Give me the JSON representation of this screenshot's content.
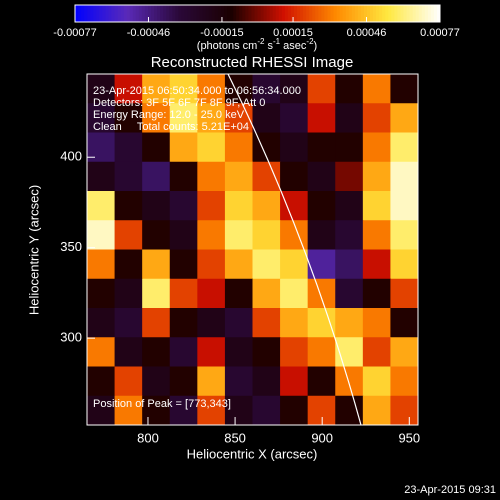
{
  "chart_data": {
    "type": "heatmap",
    "title": "Reconstructed RHESSI Image",
    "x_label": "Heliocentric X (arcsec)",
    "y_label": "Heliocentric Y (arcsec)",
    "colorbar_label": [
      "(photons cm",
      "-2",
      " s",
      "-1",
      " asec",
      "-2",
      ")"
    ],
    "annotations": [
      "23-Apr-2015 06:50:34.000 to 06:56:34.000",
      "Detectors: 3F 5F 6F 7F 8F 9F, Att 0",
      "Energy Range: 12.0 - 25.0 keV",
      "Clean     Total counts: 5.21E+04"
    ],
    "peak_label": "Position of Peak = [773,343]",
    "timestamp": "23-Apr-2015 09:31",
    "xlim": [
      765,
      955
    ],
    "xticks": [
      800,
      850,
      900,
      950
    ],
    "ylim": [
      252,
      446
    ],
    "yticks": [
      300,
      350,
      400
    ],
    "cblim": [
      -0.00077,
      0.00077
    ],
    "cbticks": [
      -0.00077,
      -0.00046,
      -0.00015,
      0.00015,
      0.00046,
      0.00077
    ],
    "colormap": [
      "#0000ff",
      "#5a2ab8",
      "#2a0838",
      "#1a0000",
      "#d01000",
      "#ff8a00",
      "#ffe840",
      "#ffffff"
    ],
    "z": [
      [
        -0.0002,
        0.0001,
        0.0004,
        0.0005,
        0.0003,
        -0.0001,
        -0.0003,
        -0.0002,
        0.0002,
        -0.0001,
        0.0003,
        -0.0001
      ],
      [
        -0.0003,
        -0.0001,
        0.0003,
        0.0006,
        0.0004,
        0.0002,
        -0.0002,
        -0.0003,
        0.0001,
        -0.0002,
        0.0002,
        0.0004
      ],
      [
        -0.0004,
        -0.0003,
        -0.0001,
        0.0004,
        0.0005,
        0.0003,
        -0.0001,
        -0.0002,
        -0.0001,
        -0.0001,
        0.0003,
        0.0006
      ],
      [
        -0.0002,
        -0.0003,
        -0.0004,
        -0.0001,
        0.0003,
        0.0004,
        0.0002,
        -0.0001,
        -0.0002,
        0,
        0.0004,
        0.0007
      ],
      [
        0.0006,
        -0.0001,
        -0.0002,
        -0.0003,
        0.0002,
        0.0005,
        0.0004,
        0.0001,
        -0.0001,
        -0.0002,
        0.0005,
        0.0007
      ],
      [
        0.0007,
        0.0002,
        -0.0001,
        -0.0002,
        0.0003,
        0.0006,
        0.0005,
        0.0003,
        -0.0002,
        -0.0003,
        0.0003,
        0.0006
      ],
      [
        0.0003,
        -0.0001,
        0.0004,
        -0.0001,
        0.0002,
        0.0004,
        0.0006,
        0.0005,
        -0.0005,
        -0.0004,
        0.0001,
        0.0005
      ],
      [
        -0.0001,
        -0.0002,
        0.0006,
        0.0002,
        0.0001,
        -0.0001,
        0.0004,
        0.0006,
        0.0003,
        -0.0003,
        -0.0001,
        0.0002
      ],
      [
        -0.0002,
        -0.0003,
        0.0002,
        -0.0001,
        -0.0002,
        -0.0003,
        0.0002,
        0.0004,
        0.0005,
        0.0004,
        0.0003,
        -0.0001
      ],
      [
        0.0003,
        -0.0002,
        -0.0001,
        -0.0003,
        0.0001,
        -0.0002,
        -0.0001,
        0.0002,
        0.0003,
        0.0006,
        0.0002,
        0.0004
      ],
      [
        -0.0001,
        0.0002,
        -0.0002,
        -0.0001,
        0.0004,
        -0.0003,
        -0.0002,
        0.0001,
        -0.0001,
        0.0003,
        0.0005,
        0.0003
      ],
      [
        -0.0002,
        0.0003,
        -0.0001,
        -0.0003,
        0.0002,
        -0.0002,
        -0.0003,
        -0.0001,
        0.0002,
        -0.0001,
        0.0004,
        0.0002
      ]
    ]
  }
}
